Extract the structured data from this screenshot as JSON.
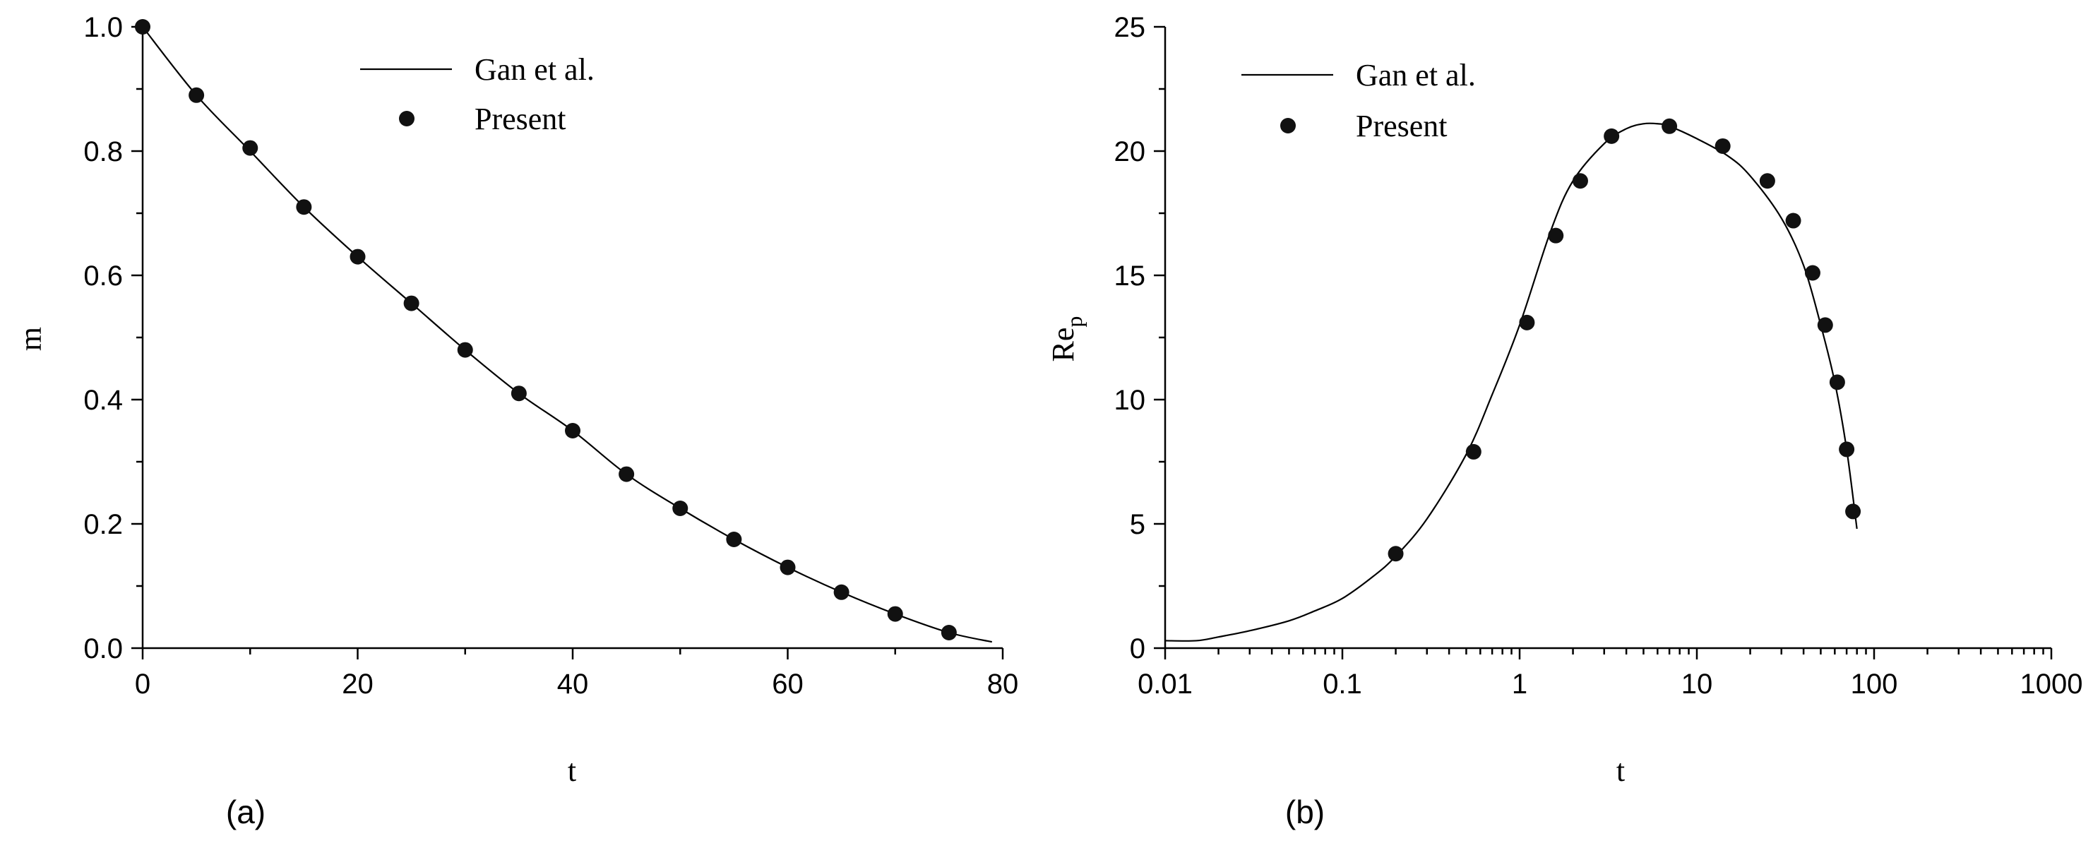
{
  "chart_data": [
    {
      "type": "line",
      "panel_label": "(a)",
      "xlabel": "t",
      "ylabel": "m",
      "xlim": [
        0,
        80
      ],
      "ylim": [
        0,
        1.0
      ],
      "x_ticks": [
        "0",
        "20",
        "40",
        "60",
        "80"
      ],
      "y_ticks": [
        "0.0",
        "0.2",
        "0.4",
        "0.6",
        "0.8",
        "1.0"
      ],
      "legend": {
        "placement": "top-center",
        "entries": [
          "Gan et al.",
          "Present"
        ]
      },
      "series": [
        {
          "name": "Gan et al.",
          "style": "line",
          "x": [
            0,
            5,
            10,
            15,
            20,
            25,
            30,
            35,
            40,
            45,
            50,
            55,
            60,
            65,
            70,
            75,
            79
          ],
          "y": [
            1.0,
            0.89,
            0.8,
            0.71,
            0.63,
            0.555,
            0.48,
            0.41,
            0.35,
            0.28,
            0.225,
            0.175,
            0.13,
            0.09,
            0.055,
            0.025,
            0.01
          ]
        },
        {
          "name": "Present",
          "style": "markers",
          "x": [
            0,
            5,
            10,
            15,
            20,
            25,
            30,
            35,
            40,
            45,
            50,
            55,
            60,
            65,
            70,
            75
          ],
          "y": [
            1.0,
            0.89,
            0.805,
            0.71,
            0.63,
            0.555,
            0.48,
            0.41,
            0.35,
            0.28,
            0.225,
            0.175,
            0.13,
            0.09,
            0.055,
            0.025
          ]
        }
      ]
    },
    {
      "type": "line",
      "panel_label": "(b)",
      "xlabel": "t",
      "ylabel": "Re",
      "ylabel_subscript": "p",
      "xscale": "log",
      "xlim": [
        0.01,
        1000
      ],
      "ylim": [
        0,
        25
      ],
      "x_ticks": [
        "0.01",
        "0.1",
        "1",
        "10",
        "100",
        "1000"
      ],
      "y_ticks": [
        "0",
        "5",
        "10",
        "15",
        "20",
        "25"
      ],
      "legend": {
        "placement": "top-left",
        "entries": [
          "Gan et al.",
          "Present"
        ]
      },
      "series": [
        {
          "name": "Gan et al.",
          "style": "line",
          "x": [
            0.01,
            0.015,
            0.02,
            0.03,
            0.05,
            0.07,
            0.1,
            0.15,
            0.2,
            0.3,
            0.5,
            0.7,
            1,
            1.5,
            2,
            3,
            4,
            5,
            6,
            7,
            10,
            15,
            20,
            30,
            40,
            50,
            60,
            70,
            80
          ],
          "y": [
            0.3,
            0.3,
            0.45,
            0.7,
            1.1,
            1.5,
            2.0,
            2.9,
            3.7,
            5.2,
            7.8,
            10.2,
            13.0,
            16.8,
            18.8,
            20.3,
            20.9,
            21.1,
            21.1,
            21.0,
            20.5,
            19.8,
            19.0,
            17.3,
            15.4,
            13.0,
            10.7,
            8.0,
            4.8
          ]
        },
        {
          "name": "Present",
          "style": "markers",
          "x": [
            0.2,
            0.55,
            1.1,
            1.6,
            2.2,
            3.3,
            7,
            14,
            25,
            35,
            45,
            53,
            62,
            70,
            76
          ],
          "y": [
            3.8,
            7.9,
            13.1,
            16.6,
            18.8,
            20.6,
            21.0,
            20.2,
            18.8,
            17.2,
            15.1,
            13.0,
            10.7,
            8.0,
            5.5
          ]
        }
      ]
    }
  ]
}
